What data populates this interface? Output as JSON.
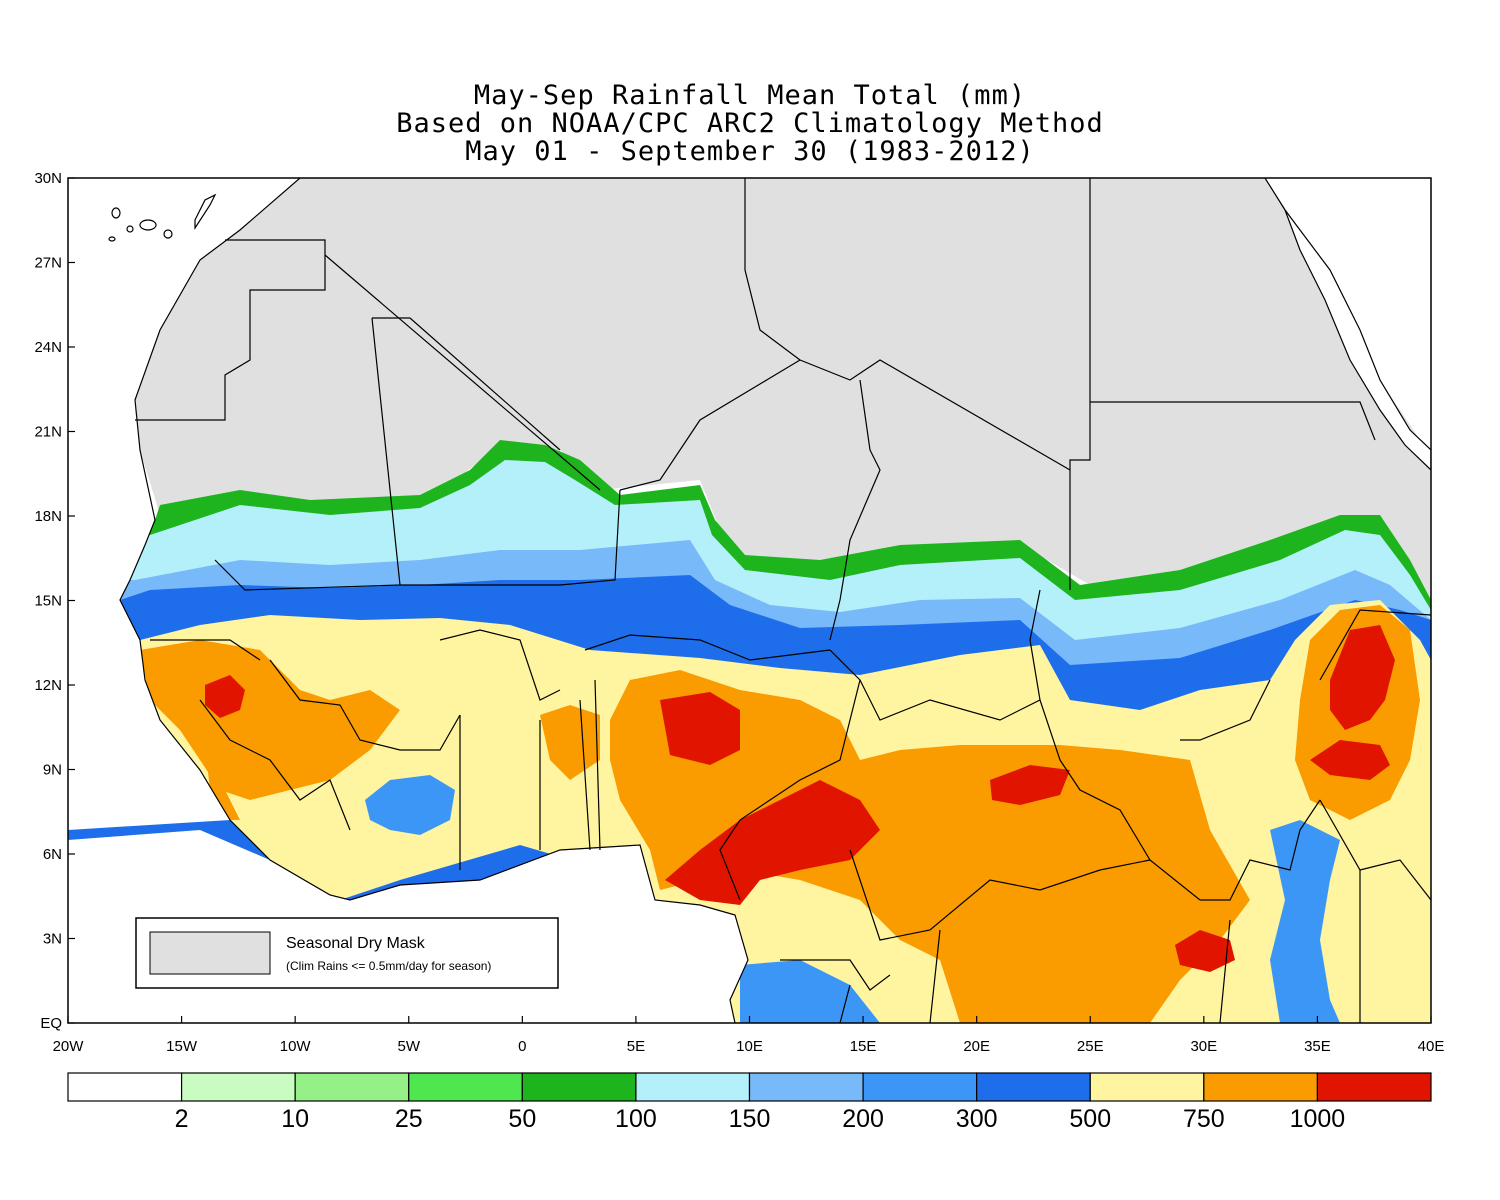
{
  "title": {
    "line1": "May-Sep Rainfall Mean Total (mm)",
    "line2": "Based on NOAA/CPC ARC2 Climatology Method",
    "line3": "May 01 - September 30 (1983-2012)"
  },
  "map": {
    "lon_range": [
      -20,
      40
    ],
    "lat_range": [
      0,
      30
    ],
    "x_ticks": [
      {
        "value": -20,
        "label": "20W"
      },
      {
        "value": -15,
        "label": "15W"
      },
      {
        "value": -10,
        "label": "10W"
      },
      {
        "value": -5,
        "label": "5W"
      },
      {
        "value": 0,
        "label": "0"
      },
      {
        "value": 5,
        "label": "5E"
      },
      {
        "value": 10,
        "label": "10E"
      },
      {
        "value": 15,
        "label": "15E"
      },
      {
        "value": 20,
        "label": "20E"
      },
      {
        "value": 25,
        "label": "25E"
      },
      {
        "value": 30,
        "label": "30E"
      },
      {
        "value": 35,
        "label": "35E"
      },
      {
        "value": 40,
        "label": "40E"
      }
    ],
    "y_ticks": [
      {
        "value": 0,
        "label": "EQ"
      },
      {
        "value": 3,
        "label": "3N"
      },
      {
        "value": 6,
        "label": "6N"
      },
      {
        "value": 9,
        "label": "9N"
      },
      {
        "value": 12,
        "label": "12N"
      },
      {
        "value": 15,
        "label": "15N"
      },
      {
        "value": 18,
        "label": "18N"
      },
      {
        "value": 21,
        "label": "21N"
      },
      {
        "value": 24,
        "label": "24N"
      },
      {
        "value": 27,
        "label": "27N"
      },
      {
        "value": 30,
        "label": "30N"
      }
    ],
    "dry_mask_color": "#e0e0e0",
    "ocean_color": "#ffffff"
  },
  "legend": {
    "title": "Seasonal Dry Mask",
    "subtitle": "(Clim Rains <= 0.5mm/day for season)",
    "swatch_color": "#e0e0e0"
  },
  "colorbar": {
    "colors": [
      "#ffffff",
      "#c8fcc0",
      "#96f088",
      "#50e650",
      "#1eb41e",
      "#b4f0fa",
      "#78b9fa",
      "#3c96f5",
      "#1e6eeb",
      "#fff5a0",
      "#fa9b00",
      "#e11400"
    ],
    "labels": [
      "2",
      "10",
      "25",
      "50",
      "100",
      "150",
      "200",
      "300",
      "500",
      "750",
      "1000"
    ]
  }
}
